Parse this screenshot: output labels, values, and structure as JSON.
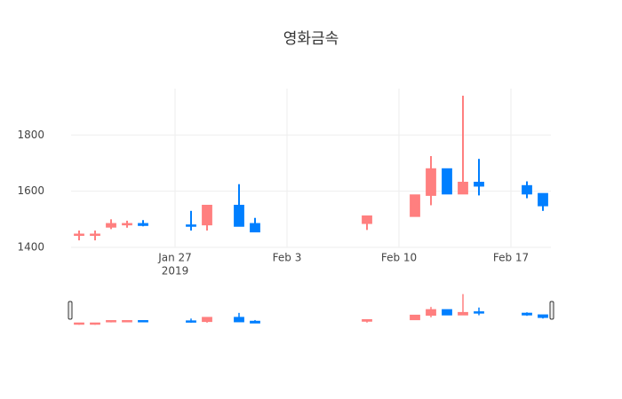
{
  "chart_data": {
    "type": "candlestick",
    "title": "영화금속",
    "x": [
      "2019-01-21",
      "2019-01-22",
      "2019-01-23",
      "2019-01-24",
      "2019-01-25",
      "2019-01-28",
      "2019-01-29",
      "2019-01-31",
      "2019-02-01",
      "2019-02-08",
      "2019-02-11",
      "2019-02-12",
      "2019-02-13",
      "2019-02-14",
      "2019-02-15",
      "2019-02-18",
      "2019-02-19"
    ],
    "open": [
      1445,
      1445,
      1472,
      1480,
      1485,
      1480,
      1480,
      1550,
      1485,
      1485,
      1510,
      1585,
      1680,
      1590,
      1632,
      1620,
      1592
    ],
    "high": [
      1460,
      1460,
      1500,
      1495,
      1497,
      1530,
      1550,
      1625,
      1505,
      1512,
      1587,
      1725,
      1680,
      1940,
      1715,
      1635,
      1592
    ],
    "low": [
      1425,
      1425,
      1465,
      1470,
      1475,
      1460,
      1460,
      1475,
      1455,
      1462,
      1510,
      1550,
      1590,
      1590,
      1585,
      1575,
      1530
    ],
    "close": [
      1445,
      1445,
      1485,
      1485,
      1478,
      1475,
      1550,
      1475,
      1455,
      1512,
      1587,
      1680,
      1590,
      1632,
      1618,
      1590,
      1548
    ],
    "increasing_color": "#ff7f7f",
    "decreasing_color": "#007fff",
    "xlim": [
      "2019-01-20T12:00",
      "2019-02-19T12:00"
    ],
    "xticks": [
      {
        "value": "2019-01-27",
        "label": "Jan 27"
      },
      {
        "value": "2019-02-03",
        "label": "Feb 3"
      },
      {
        "value": "2019-02-10",
        "label": "Feb 10"
      },
      {
        "value": "2019-02-17",
        "label": "Feb 17"
      }
    ],
    "year_label": "2019",
    "ylim": [
      1400,
      1965
    ],
    "yticks": [
      1400,
      1600,
      1800
    ],
    "grid": true,
    "rangeslider": true
  }
}
